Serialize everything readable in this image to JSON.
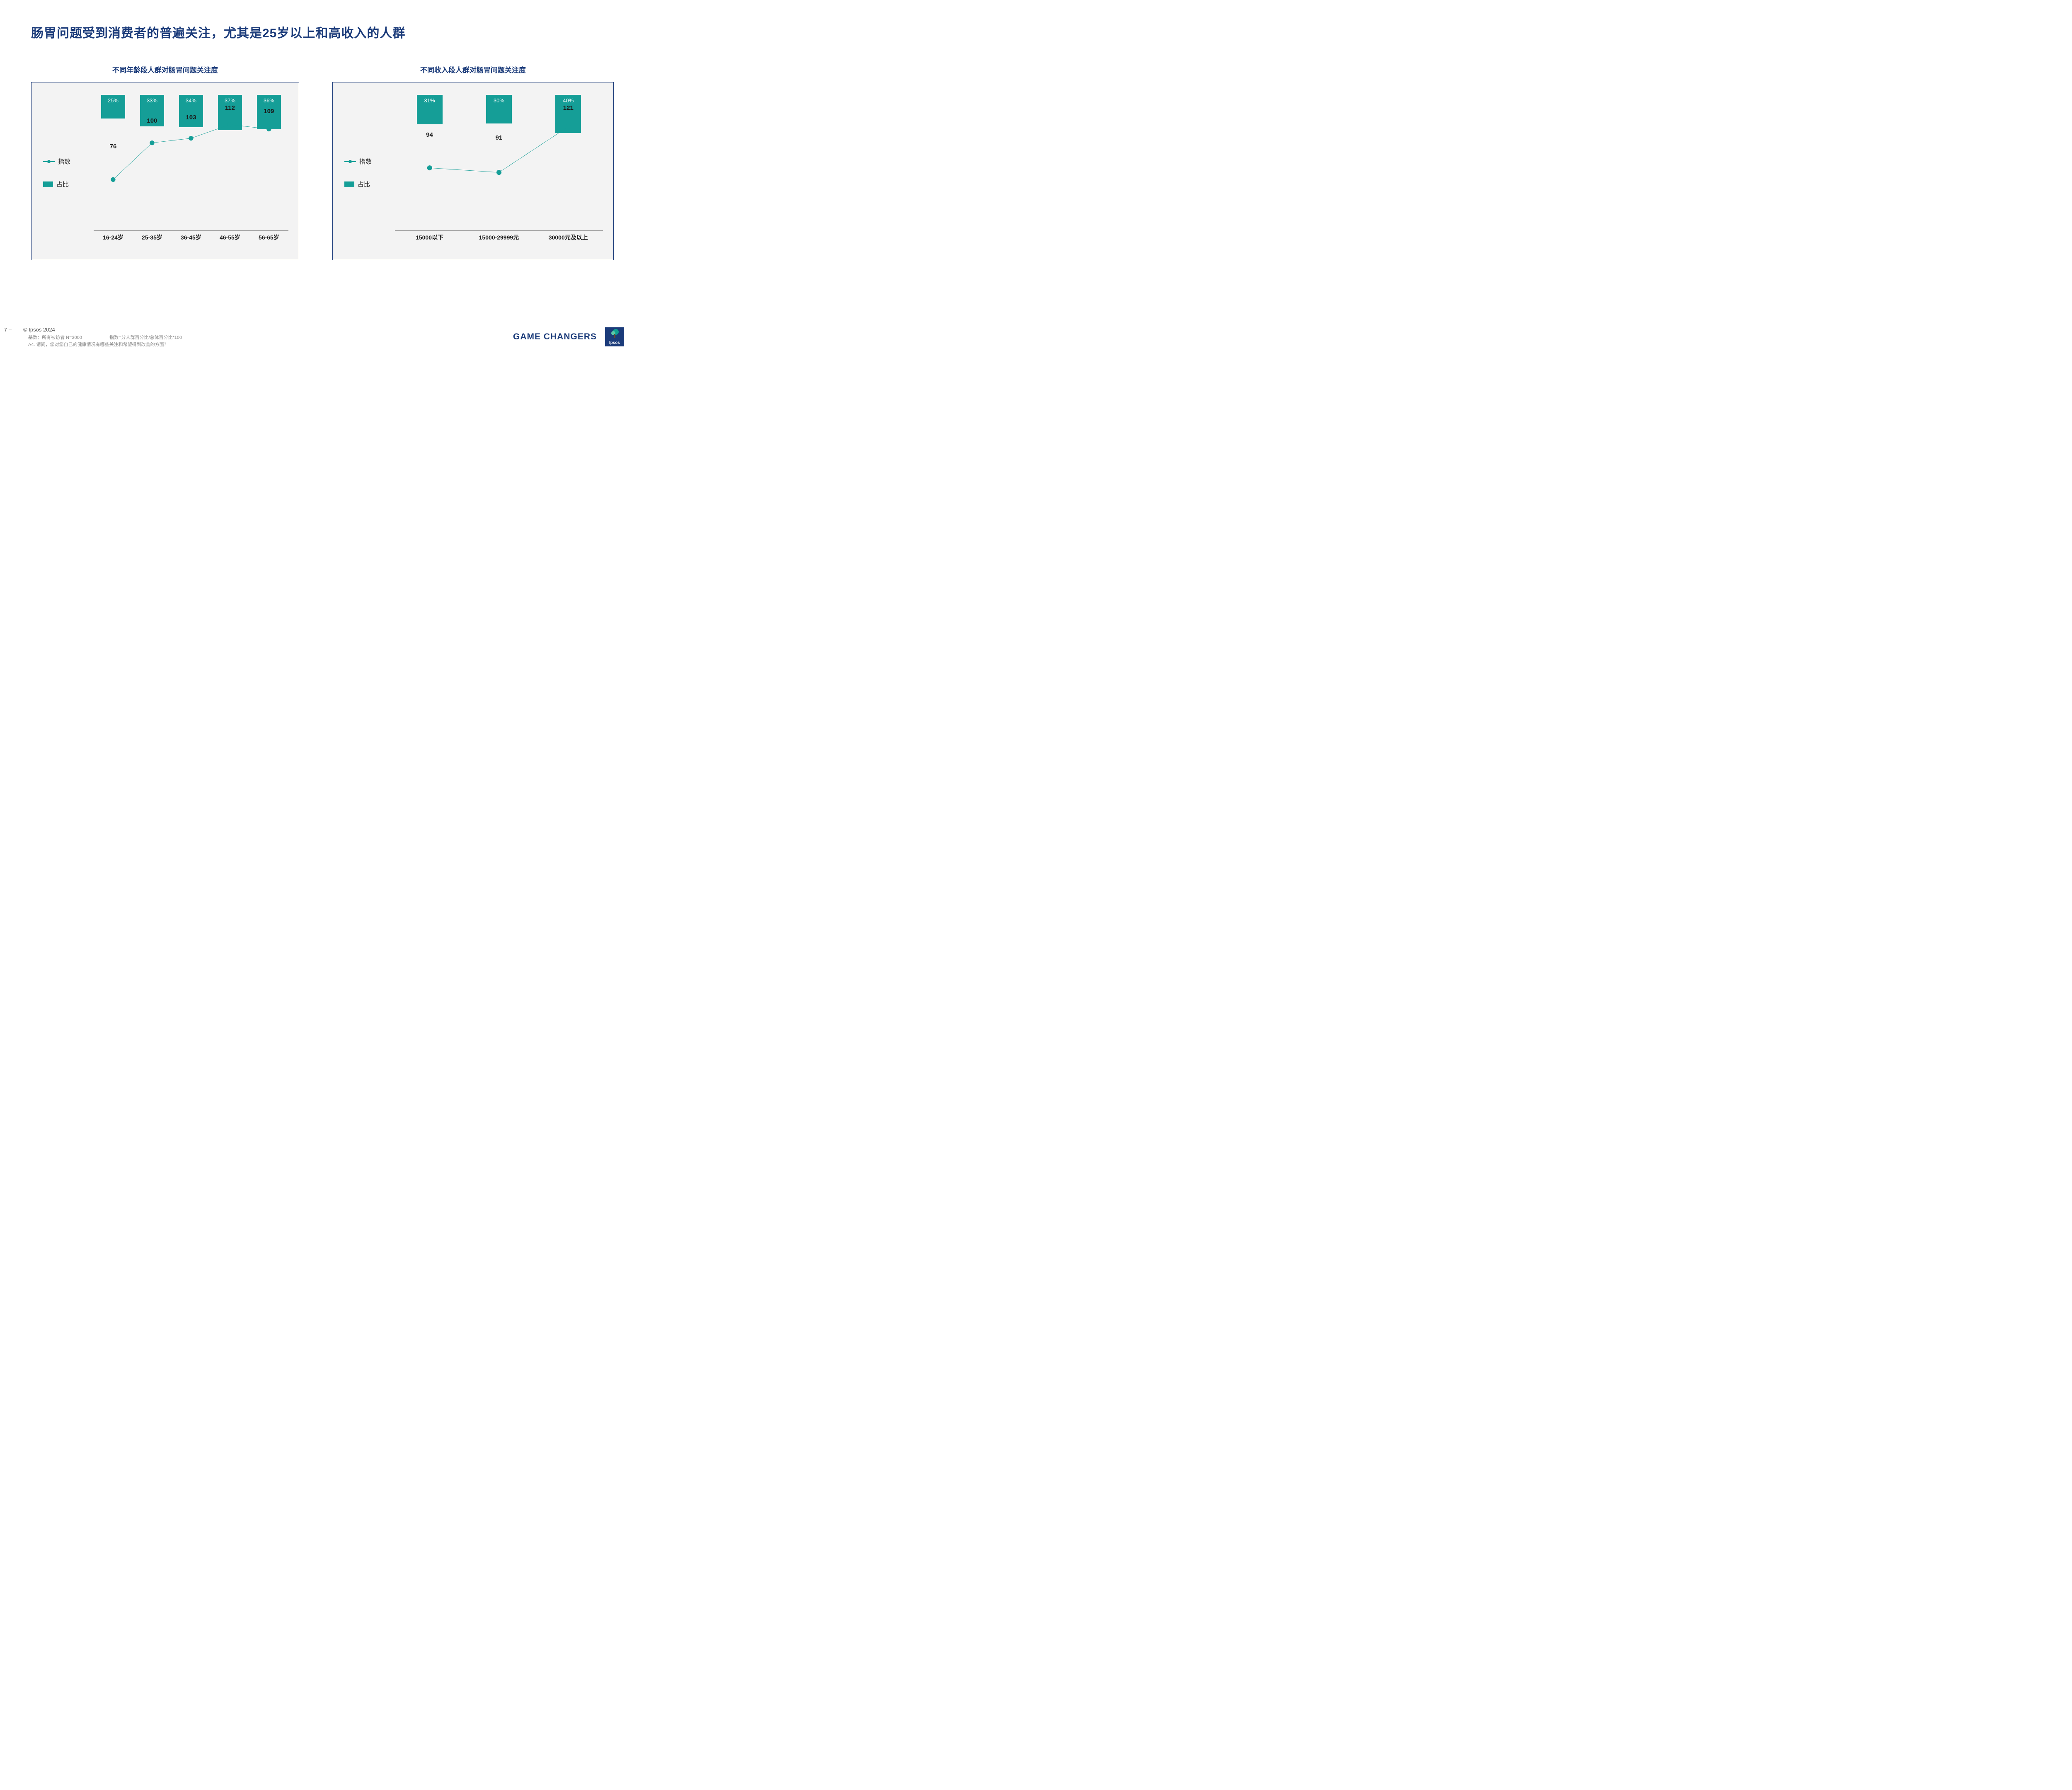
{
  "title": "肠胃问题受到消费者的普遍关注，尤其是25岁以上和高收入的人群",
  "legend": {
    "index": "指数",
    "percent": "占比"
  },
  "colors": {
    "primary": "#159E97",
    "frame": "#1B3B7A",
    "bg": "#f3f3f3",
    "text_dark": "#1a1a1a"
  },
  "chart_left": {
    "subtitle": "不同年龄段人群对肠胃问题关注度",
    "type": "bar+line",
    "bar_max_pct": 50,
    "line_min": 55,
    "line_max": 125,
    "categories": [
      "16-24岁",
      "25-35岁",
      "36-45岁",
      "46-55岁",
      "56-65岁"
    ],
    "bars_pct": [
      25,
      33,
      34,
      37,
      36
    ],
    "line_index": [
      76,
      100,
      103,
      112,
      109
    ]
  },
  "chart_right": {
    "subtitle": "不同收入段人群对肠胃问题关注度",
    "type": "bar+line",
    "bar_max_pct": 50,
    "line_min": 60,
    "line_max": 135,
    "categories": [
      "15000以下",
      "15000-29999元",
      "30000元及以上"
    ],
    "bars_pct": [
      31,
      30,
      40
    ],
    "line_index": [
      94,
      91,
      121
    ]
  },
  "footer": {
    "page": "7 ‒",
    "copyright": "© Ipsos 2024",
    "base": "基数：所有被访者  N=3000",
    "index_def": "指数=分人群百分比/总体百分比*100",
    "question": "A4. 请问，您对您自己的健康情况有哪些关注和希望得到改善的方面？"
  },
  "brand": {
    "tagline": "GAME CHANGERS",
    "logo_text": "Ipsos"
  }
}
